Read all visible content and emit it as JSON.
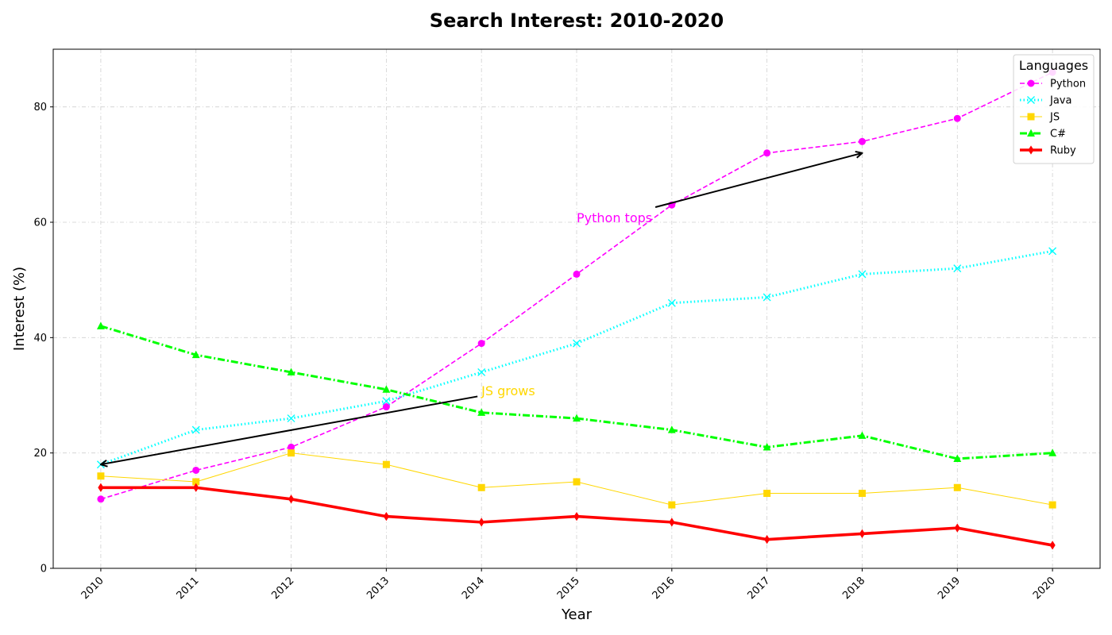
{
  "chart_data": {
    "type": "line",
    "title": "Search Interest: 2010-2020",
    "xlabel": "Year",
    "ylabel": "Interest (%)",
    "x": [
      2010,
      2011,
      2012,
      2013,
      2014,
      2015,
      2016,
      2017,
      2018,
      2019,
      2020
    ],
    "ylim": [
      0,
      90
    ],
    "yticks": [
      0,
      20,
      40,
      60,
      80
    ],
    "grid": true,
    "legend": {
      "title": "Languages",
      "placement": "top-right"
    },
    "series": [
      {
        "name": "Python",
        "color": "#ff00ff",
        "dash": "dashed",
        "marker": "circle",
        "width": "normal",
        "values": [
          12,
          17,
          21,
          28,
          39,
          51,
          63,
          72,
          74,
          78,
          86
        ]
      },
      {
        "name": "Java",
        "color": "#00ffff",
        "dash": "dotted",
        "marker": "x",
        "width": "thick",
        "values": [
          18,
          24,
          26,
          29,
          34,
          39,
          46,
          47,
          51,
          52,
          55
        ]
      },
      {
        "name": "JS",
        "color": "#ffd700",
        "dash": "solid",
        "marker": "square",
        "width": "thin",
        "values": [
          16,
          15,
          20,
          18,
          14,
          15,
          11,
          13,
          13,
          14,
          11
        ]
      },
      {
        "name": "C#",
        "color": "#00ff00",
        "dash": "dashdot",
        "marker": "triangle",
        "width": "thick",
        "values": [
          42,
          37,
          34,
          31,
          27,
          26,
          24,
          21,
          23,
          19,
          20
        ]
      },
      {
        "name": "Ruby",
        "color": "#ff0000",
        "dash": "solid",
        "marker": "diamond",
        "width": "heavy",
        "values": [
          14,
          14,
          12,
          9,
          8,
          9,
          8,
          5,
          6,
          7,
          4
        ]
      }
    ],
    "annotations": [
      {
        "text": "Python tops",
        "color": "#ff00ff",
        "text_at": [
          2015,
          60
        ],
        "arrow_to": [
          2018,
          72
        ]
      },
      {
        "text": "JS grows",
        "color": "#ffd700",
        "text_at": [
          2014,
          30
        ],
        "arrow_to": [
          2010,
          18
        ]
      }
    ]
  }
}
